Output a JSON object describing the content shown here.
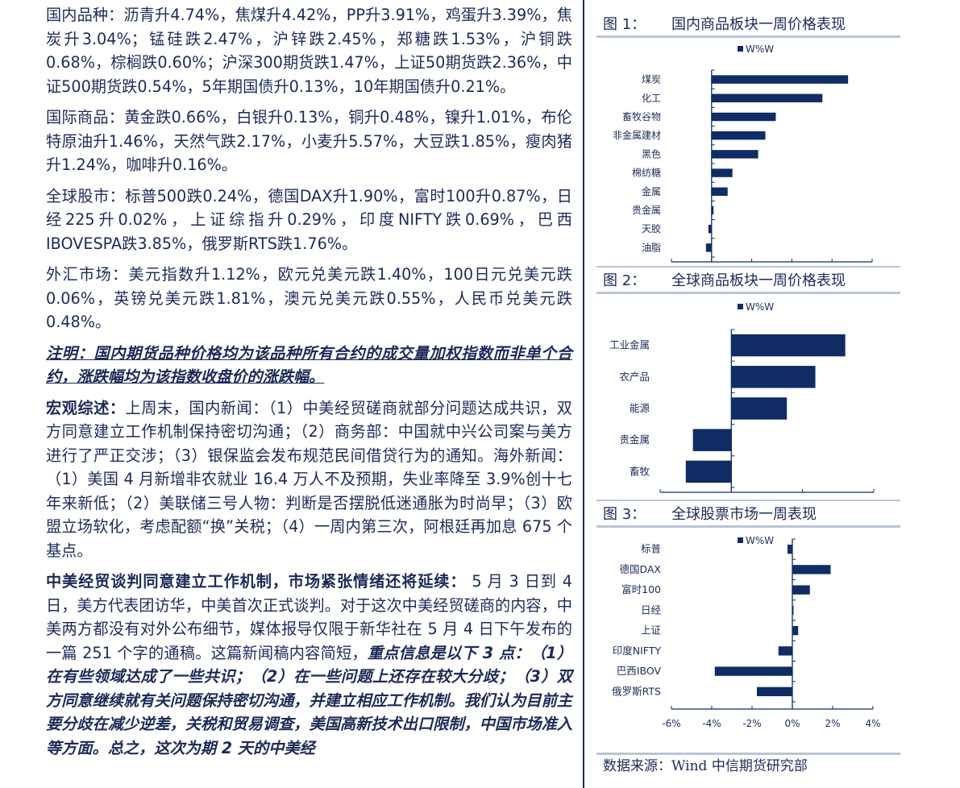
{
  "body": [
    {
      "segs": [
        {
          "t": "国内品种：沥青升4.74%，焦煤升4.42%，PP升3.91%，鸡蛋升3.39%，焦炭升3.04%；锰硅跌2.47%，沪锌跌2.45%，郑糖跌1.53%，沪铜跌0.68%，棕榈跌0.60%；沪深300期货跌1.47%，上证50期货跌2.36%，中证500期货跌0.54%，5年期国债升0.13%，10年期国债升0.21%。",
          "s": "n"
        }
      ]
    },
    {
      "segs": [
        {
          "t": "国际商品：黄金跌0.66%，白银升0.13%，铜升0.48%，镍升1.01%，布伦特原油升1.46%，天然气跌2.17%，小麦升5.57%，大豆跌1.85%，瘦肉猪升1.24%，咖啡升0.16%。",
          "s": "n"
        }
      ]
    },
    {
      "segs": [
        {
          "t": "全球股市：标普500跌0.24%，德国DAX升1.90%，富时100升0.87%，日经225升0.02%，上证综指升0.29%，印度NIFTY跌0.69%，巴西IBOVESPA跌3.85%，俄罗斯RTS跌1.76%。",
          "s": "n"
        }
      ]
    },
    {
      "segs": [
        {
          "t": "外汇市场：美元指数升1.12%，欧元兑美元跌1.40%，100日元兑美元跌0.06%，英镑兑美元跌1.81%，澳元兑美元跌0.55%，人民币兑美元跌0.48%。",
          "s": "n"
        }
      ]
    },
    {
      "segs": [
        {
          "t": "注明：国内期货品种价格均为该品种所有合约的成交量加权指数而非单个合约，涨跌幅均为该指数收盘价的涨跌幅。",
          "s": "biu"
        }
      ]
    },
    {
      "segs": [
        {
          "t": "宏观综述：",
          "s": "b"
        },
        {
          "t": "上周末，国内新闻：（1）中美经贸磋商就部分问题达成共识，双方同意建立工作机制保持密切沟通；（2）商务部：中国就中兴公司案与美方进行了严正交涉；（3）银保监会发布规范民间借贷行为的通知。海外新闻：（1）美国 4 月新增非农就业 16.4 万人不及预期，失业率降至 3.9%创十七年来新低；（2）美联储三号人物：判断是否摆脱低迷通胀为时尚早；（3）欧盟立场软化，考虑配额“换”关税；（4）一周内第三次，阿根廷再加息 675 个基点。",
          "s": "n"
        }
      ]
    },
    {
      "segs": [
        {
          "t": "中美经贸谈判同意建立工作机制，市场紧张情绪还将延续：",
          "s": "b"
        },
        {
          "t": " 5 月 3 日到 4 日，美方代表团访华，中美首次正式谈判。对于这次中美经贸磋商的内容，中美两方都没有对外公布细节，媒体报导仅限于新华社在 5 月 4 日下午发布的一篇 251 个字的通稿。这篇新闻稿内容简短，",
          "s": "n"
        },
        {
          "t": "重点信息是以下 3 点：（1）在有些领域达成了一些共识；（2）在一些问题上还存在较大分歧；（3）双方同意继续就有关问题保持密切沟通，并建立相应工作机制。我们认为目前主要分歧在减少逆差，关税和贸易调查，美国高新技术出口限制，中国市场准入等方面。总之，这次为期 2 天的中美经",
          "s": "bi"
        }
      ]
    }
  ],
  "figures": [
    {
      "num": "图 1：",
      "title": "国内商品板块一周价格表现"
    },
    {
      "num": "图 2：",
      "title": "全球商品板块一周价格表现"
    },
    {
      "num": "图 3：",
      "title": "全球股票市场一周表现"
    }
  ],
  "source": "数据来源：Wind  中信期货研究部",
  "chart_data": [
    {
      "type": "bar",
      "orientation": "horizontal",
      "title": "国内商品板块一周价格表现",
      "legend": [
        "W%W"
      ],
      "legend_position": "top",
      "color": "#0f2d64",
      "categories": [
        "煤炭",
        "化工",
        "畜牧谷物",
        "非金属建材",
        "黑色",
        "棉纺糖",
        "金属",
        "贵金属",
        "天胶",
        "油脂"
      ],
      "series": [
        {
          "name": "W%W",
          "values": [
            3.4,
            2.76,
            1.6,
            1.34,
            1.16,
            0.52,
            0.4,
            0.05,
            -0.08,
            -0.14
          ]
        }
      ],
      "xlim": [
        -1,
        4
      ],
      "ticks": [
        -1,
        0,
        1,
        2,
        3,
        4
      ],
      "tick_labels": [
        "-1%",
        "0%",
        "1%",
        "2%",
        "3%",
        "4%"
      ]
    },
    {
      "type": "bar",
      "orientation": "horizontal",
      "title": "全球商品板块一周价格表现",
      "legend": [
        "W%W"
      ],
      "legend_position": "top",
      "color": "#0f2d64",
      "categories": [
        "工业金属",
        "农产品",
        "能源",
        "贵金属",
        "畜牧"
      ],
      "series": [
        {
          "name": "W%W",
          "values": [
            0.8,
            0.59,
            0.39,
            -0.27,
            -0.32
          ]
        }
      ],
      "xlim": [
        -0.5,
        1.0
      ],
      "ticks": [
        -0.5,
        0,
        0.5,
        1.0
      ],
      "tick_labels": [
        "-1%",
        "0%",
        "1%",
        "1%"
      ]
    },
    {
      "type": "bar",
      "orientation": "horizontal",
      "title": "全球股票市场一周表现",
      "legend": [
        "W%W"
      ],
      "legend_position": "top-left",
      "color": "#0f2d64",
      "categories": [
        "标普",
        "德国DAX",
        "富时100",
        "日经",
        "上证",
        "印度NIFTY",
        "巴西IBOV",
        "俄罗斯RTS"
      ],
      "series": [
        {
          "name": "W%W",
          "values": [
            -0.24,
            1.9,
            0.87,
            0.02,
            0.29,
            -0.69,
            -3.85,
            -1.76
          ]
        }
      ],
      "xlim": [
        -6,
        4
      ],
      "ticks": [
        -6,
        -4,
        -2,
        0,
        2,
        4
      ],
      "tick_labels": [
        "-6%",
        "-4%",
        "-2%",
        "0%",
        "2%",
        "4%"
      ]
    }
  ]
}
